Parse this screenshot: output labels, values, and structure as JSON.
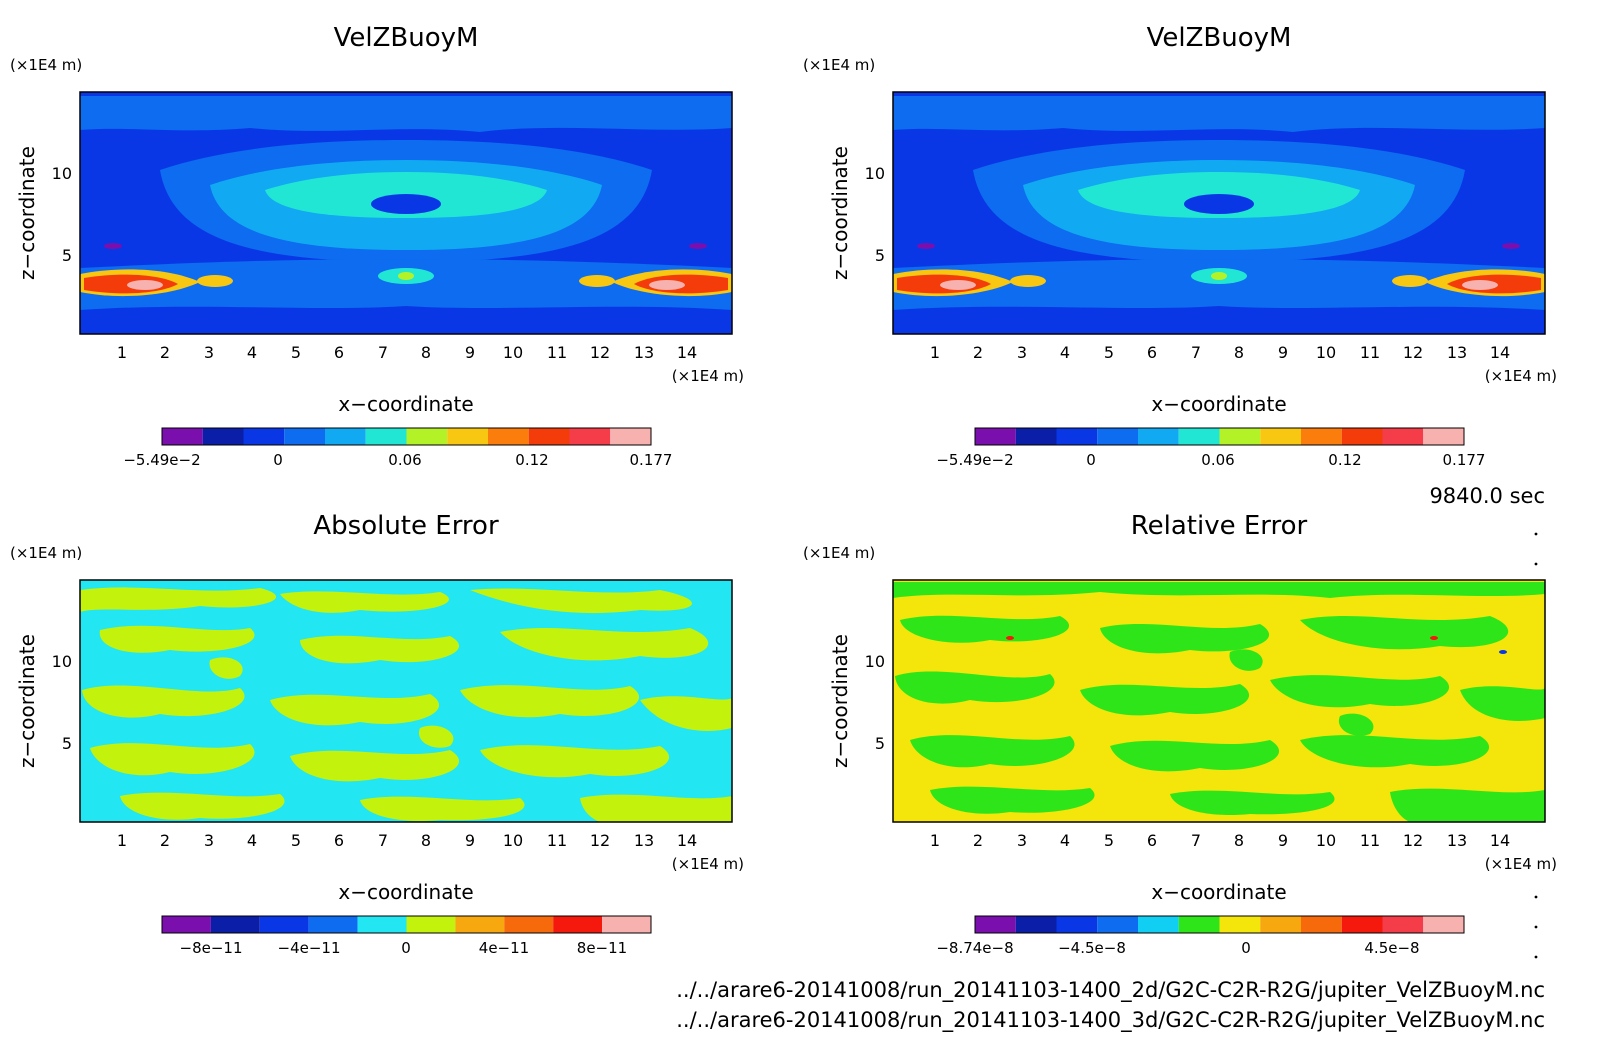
{
  "time_label": "9840.0 sec",
  "file_paths": [
    "../../arare6-20141008/run_20141103-1400_2d/G2C-C2R-R2G/jupiter_VelZBuoyM.nc",
    "../../arare6-20141008/run_20141103-1400_3d/G2C-C2R-R2G/jupiter_VelZBuoyM.nc"
  ],
  "chart_data": [
    {
      "type": "heatmap",
      "title": "VelZBuoyM",
      "xlabel": "x−coordinate",
      "ylabel": "z−coordinate",
      "x_unit": "(×1E4 m)",
      "y_unit": "(×1E4 m)",
      "xlim": [
        0,
        15
      ],
      "ylim": [
        0,
        15
      ],
      "x_ticks": [
        "1",
        "2",
        "3",
        "4",
        "5",
        "6",
        "7",
        "8",
        "9",
        "10",
        "11",
        "12",
        "13",
        "14"
      ],
      "y_ticks": [
        "5",
        "10"
      ],
      "colorbar": {
        "colors": [
          "#7a0fae",
          "#0a1ea8",
          "#0a37e6",
          "#0d6cf0",
          "#11aaf2",
          "#22e6d4",
          "#b4f228",
          "#f7c711",
          "#fb7d0c",
          "#f43c0a",
          "#f53d4a",
          "#f7b2b0"
        ],
        "tick_labels": [
          "−5.49e−2",
          "0",
          "0.06",
          "0.12",
          "0.177"
        ],
        "tick_values": [
          -0.0549,
          0,
          0.06,
          0.12,
          0.177
        ],
        "range": [
          -0.0549,
          0.177
        ]
      }
    },
    {
      "type": "heatmap",
      "title": "VelZBuoyM",
      "xlabel": "x−coordinate",
      "ylabel": "z−coordinate",
      "x_unit": "(×1E4 m)",
      "y_unit": "(×1E4 m)",
      "xlim": [
        0,
        15
      ],
      "ylim": [
        0,
        15
      ],
      "x_ticks": [
        "1",
        "2",
        "3",
        "4",
        "5",
        "6",
        "7",
        "8",
        "9",
        "10",
        "11",
        "12",
        "13",
        "14"
      ],
      "y_ticks": [
        "5",
        "10"
      ],
      "colorbar": {
        "colors": [
          "#7a0fae",
          "#0a1ea8",
          "#0a37e6",
          "#0d6cf0",
          "#11aaf2",
          "#22e6d4",
          "#b4f228",
          "#f7c711",
          "#fb7d0c",
          "#f43c0a",
          "#f53d4a",
          "#f7b2b0"
        ],
        "tick_labels": [
          "−5.49e−2",
          "0",
          "0.06",
          "0.12",
          "0.177"
        ],
        "tick_values": [
          -0.0549,
          0,
          0.06,
          0.12,
          0.177
        ],
        "range": [
          -0.0549,
          0.177
        ]
      }
    },
    {
      "type": "heatmap",
      "title": "Absolute Error",
      "xlabel": "x−coordinate",
      "ylabel": "z−coordinate",
      "x_unit": "(×1E4 m)",
      "y_unit": "(×1E4 m)",
      "xlim": [
        0,
        15
      ],
      "ylim": [
        0,
        15
      ],
      "x_ticks": [
        "1",
        "2",
        "3",
        "4",
        "5",
        "6",
        "7",
        "8",
        "9",
        "10",
        "11",
        "12",
        "13",
        "14"
      ],
      "y_ticks": [
        "5",
        "10"
      ],
      "colorbar": {
        "colors": [
          "#7a0fae",
          "#0a1ea8",
          "#0a37e6",
          "#0d6cf0",
          "#22e6f2",
          "#c3f20d",
          "#f7a80f",
          "#f76a0c",
          "#f4180d",
          "#f7b2b0"
        ],
        "tick_labels": [
          "−8e−11",
          "−4e−11",
          "0",
          "4e−11",
          "8e−11"
        ],
        "tick_values": [
          -8e-11,
          -4e-11,
          0,
          4e-11,
          8e-11
        ],
        "range": [
          -1e-10,
          1e-10
        ]
      }
    },
    {
      "type": "heatmap",
      "title": "Relative Error",
      "xlabel": "x−coordinate",
      "ylabel": "z−coordinate",
      "x_unit": "(×1E4 m)",
      "y_unit": "(×1E4 m)",
      "xlim": [
        0,
        15
      ],
      "ylim": [
        0,
        15
      ],
      "x_ticks": [
        "1",
        "2",
        "3",
        "4",
        "5",
        "6",
        "7",
        "8",
        "9",
        "10",
        "11",
        "12",
        "13",
        "14"
      ],
      "y_ticks": [
        "5",
        "10"
      ],
      "colorbar": {
        "colors": [
          "#7a0fae",
          "#0a1ea8",
          "#0a37e6",
          "#0d6cf0",
          "#11cff2",
          "#2ee51a",
          "#f4e50a",
          "#f7a80f",
          "#f76a0c",
          "#f4180d",
          "#f53d4a",
          "#f7b2b0"
        ],
        "tick_labels": [
          "−8.74e−8",
          "−4.5e−8",
          "0",
          "4.5e−8"
        ],
        "tick_values": [
          -8.74e-08,
          -4.5e-08,
          0,
          4.5e-08
        ],
        "range": [
          -8.74e-08,
          1.08e-07
        ]
      }
    }
  ]
}
